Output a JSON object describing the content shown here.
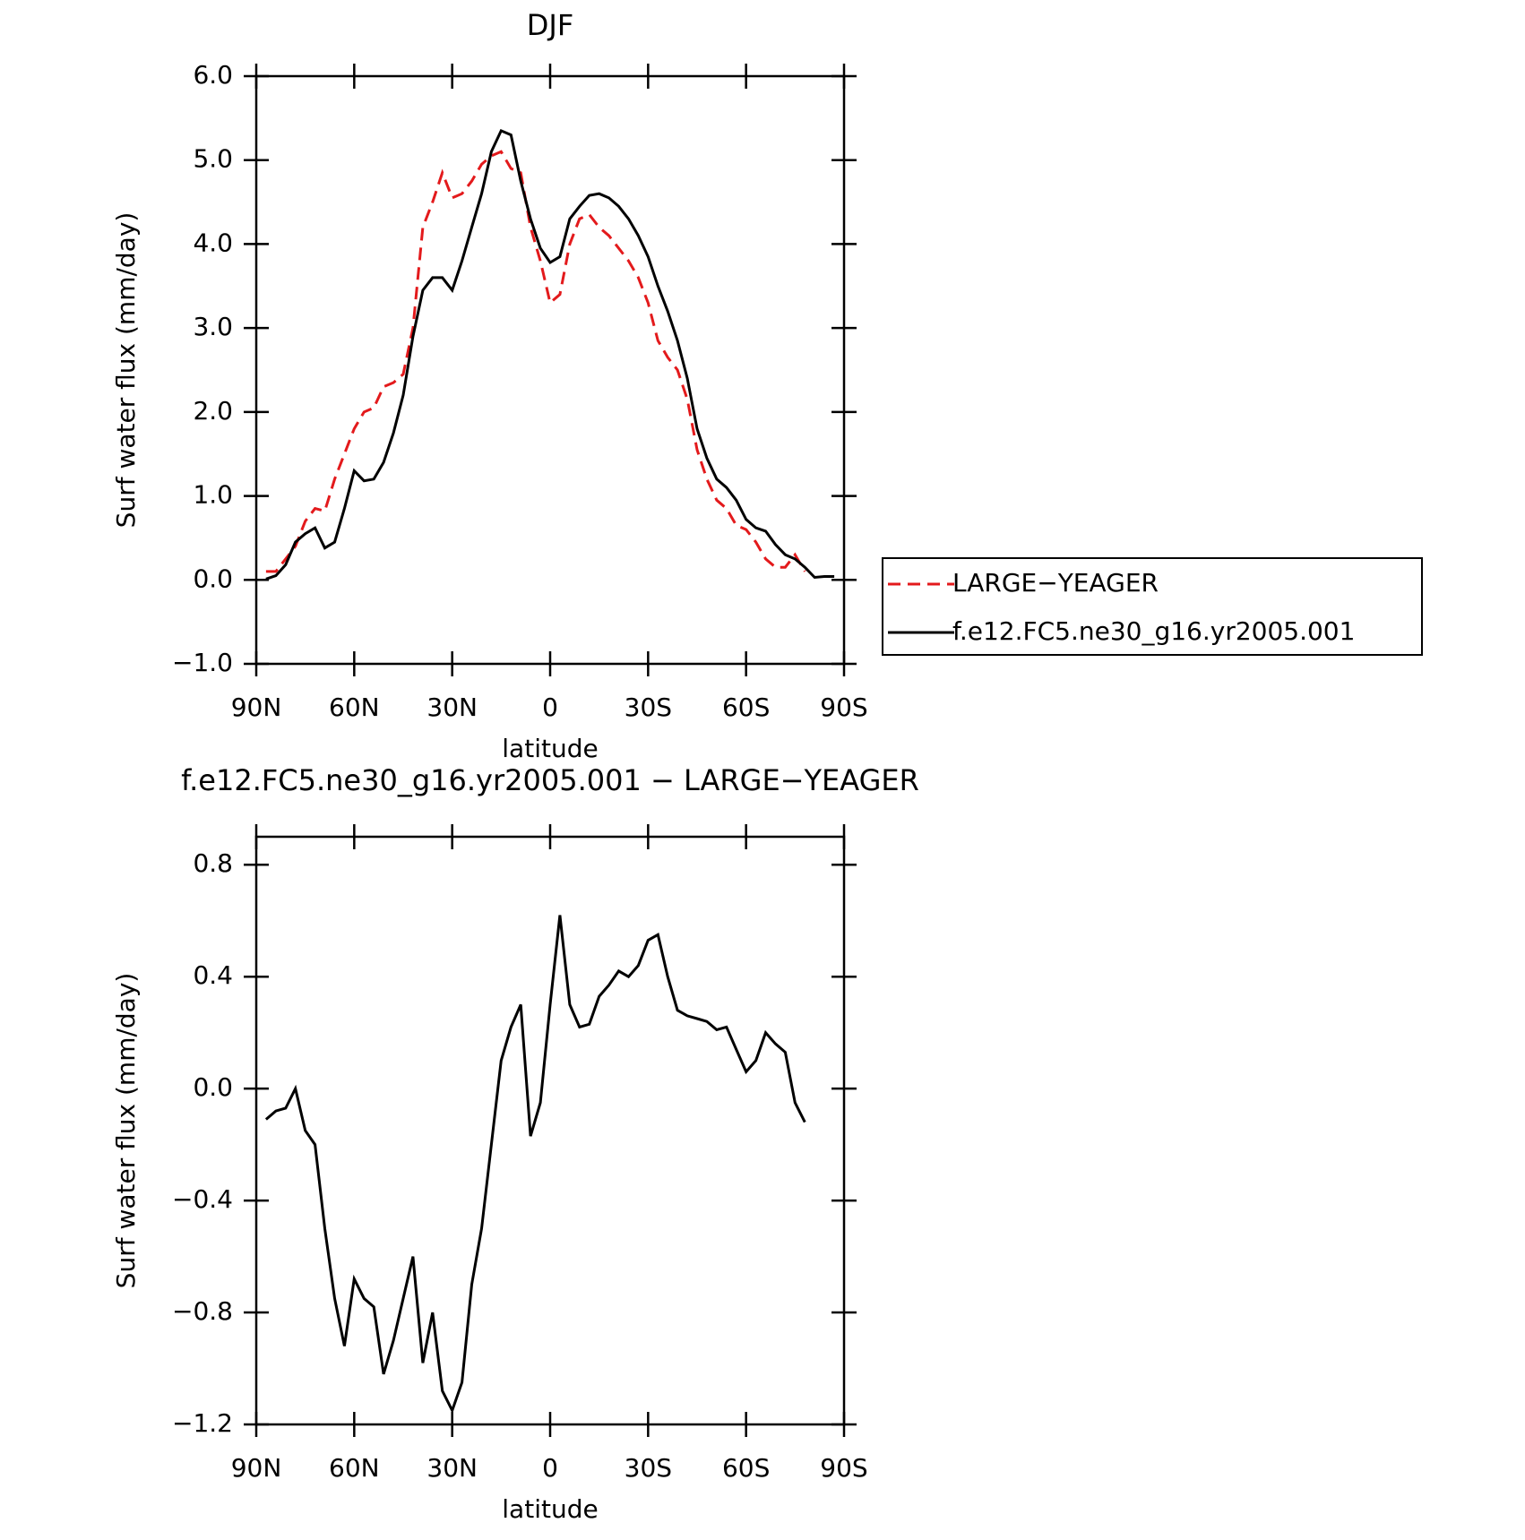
{
  "chart_data": [
    {
      "type": "line",
      "title": "DJF",
      "xlabel": "latitude",
      "ylabel": "Surf water flux (mm/day)",
      "x": [
        87,
        84,
        81,
        78,
        75,
        72,
        69,
        66,
        63,
        60,
        57,
        54,
        51,
        48,
        45,
        42,
        39,
        36,
        33,
        30,
        27,
        24,
        21,
        18,
        15,
        12,
        9,
        6,
        3,
        0,
        -3,
        -6,
        -9,
        -12,
        -15,
        -18,
        -21,
        -24,
        -27,
        -30,
        -33,
        -36,
        -39,
        -42,
        -45,
        -48,
        -51,
        -54,
        -57,
        -60,
        -63,
        -66,
        -69,
        -72,
        -75,
        -78,
        -81,
        -84,
        -87
      ],
      "series": [
        {
          "name": "LARGE−YEAGER",
          "color": "#e31a1c",
          "line_style": "dashed",
          "values": [
            0.1,
            0.1,
            0.25,
            0.4,
            0.7,
            0.85,
            0.82,
            1.2,
            1.5,
            1.8,
            2.0,
            2.05,
            2.3,
            2.35,
            2.45,
            3.0,
            4.2,
            4.5,
            4.85,
            4.55,
            4.6,
            4.75,
            4.95,
            5.05,
            5.1,
            4.9,
            4.85,
            4.2,
            3.8,
            3.3,
            3.4,
            4.0,
            4.3,
            4.35,
            4.2,
            4.1,
            3.95,
            3.8,
            3.6,
            3.3,
            2.85,
            2.65,
            2.5,
            2.15,
            1.55,
            1.2,
            0.95,
            0.85,
            0.65,
            0.6,
            0.45,
            0.25,
            0.15,
            0.15,
            0.3,
            0.1,
            null,
            null,
            null
          ]
        },
        {
          "name": "f.e12.FC5.ne30_g16.yr2005.001",
          "color": "#000000",
          "line_style": "solid",
          "values": [
            0.01,
            0.05,
            0.18,
            0.45,
            0.55,
            0.62,
            0.38,
            0.45,
            0.85,
            1.3,
            1.18,
            1.2,
            1.4,
            1.75,
            2.2,
            2.9,
            3.45,
            3.6,
            3.6,
            3.45,
            3.8,
            4.2,
            4.6,
            5.1,
            5.35,
            5.3,
            4.75,
            4.3,
            3.95,
            3.78,
            3.85,
            4.3,
            4.45,
            4.58,
            4.6,
            4.55,
            4.45,
            4.3,
            4.1,
            3.85,
            3.5,
            3.2,
            2.85,
            2.4,
            1.8,
            1.45,
            1.2,
            1.1,
            0.95,
            0.72,
            0.62,
            0.58,
            0.42,
            0.3,
            0.25,
            0.15,
            0.03,
            0.04,
            0.04
          ]
        }
      ],
      "xlim": [
        90,
        -90
      ],
      "xticks": [
        {
          "value": 90,
          "label": "90N"
        },
        {
          "value": 60,
          "label": "60N"
        },
        {
          "value": 30,
          "label": "30N"
        },
        0,
        {
          "value": -30,
          "label": "30S"
        },
        {
          "value": -60,
          "label": "60S"
        },
        {
          "value": -90,
          "label": "90S"
        }
      ],
      "ylim": [
        -1,
        6
      ],
      "yticks": [
        {
          "value": -1,
          "label": "−1.0"
        },
        {
          "value": 0,
          "label": "0.0"
        },
        {
          "value": 1,
          "label": "1.0"
        },
        {
          "value": 2,
          "label": "2.0"
        },
        {
          "value": 3,
          "label": "3.0"
        },
        {
          "value": 4,
          "label": "4.0"
        },
        {
          "value": 5,
          "label": "5.0"
        },
        {
          "value": 6,
          "label": "6.0"
        }
      ],
      "legend": "outside-right"
    },
    {
      "type": "line",
      "title": "f.e12.FC5.ne30_g16.yr2005.001 − LARGE−YEAGER",
      "xlabel": "latitude",
      "ylabel": "Surf water flux (mm/day)",
      "x": [
        87,
        84,
        81,
        78,
        75,
        72,
        69,
        66,
        63,
        60,
        57,
        54,
        51,
        48,
        45,
        42,
        39,
        36,
        33,
        30,
        27,
        24,
        21,
        18,
        15,
        12,
        9,
        6,
        3,
        0,
        -3,
        -6,
        -9,
        -12,
        -15,
        -18,
        -21,
        -24,
        -27,
        -30,
        -33,
        -36,
        -39,
        -42,
        -45,
        -48,
        -51,
        -54,
        -57,
        -60,
        -63,
        -66,
        -69,
        -72,
        -75,
        -78
      ],
      "series": [
        {
          "color": "#000000",
          "line_style": "solid",
          "values": [
            -0.11,
            -0.08,
            -0.07,
            0.0,
            -0.15,
            -0.2,
            -0.5,
            -0.75,
            -0.92,
            -0.68,
            -0.75,
            -0.78,
            -1.02,
            -0.9,
            -0.75,
            -0.6,
            -0.98,
            -0.8,
            -1.08,
            -1.15,
            -1.05,
            -0.7,
            -0.5,
            -0.2,
            0.1,
            0.22,
            0.3,
            -0.17,
            -0.05,
            0.3,
            0.62,
            0.3,
            0.22,
            0.23,
            0.33,
            0.37,
            0.42,
            0.4,
            0.44,
            0.53,
            0.55,
            0.4,
            0.28,
            0.26,
            0.25,
            0.24,
            0.21,
            0.22,
            0.14,
            0.06,
            0.1,
            0.2,
            0.16,
            0.13,
            -0.05,
            -0.12
          ]
        }
      ],
      "xlim": [
        90,
        -90
      ],
      "xticks": [
        {
          "value": 90,
          "label": "90N"
        },
        {
          "value": 60,
          "label": "60N"
        },
        {
          "value": 30,
          "label": "30N"
        },
        0,
        {
          "value": -30,
          "label": "30S"
        },
        {
          "value": -60,
          "label": "60S"
        },
        {
          "value": -90,
          "label": "90S"
        }
      ],
      "ylim": [
        -1.2,
        0.9
      ],
      "yticks": [
        {
          "value": -1.2,
          "label": "−1.2"
        },
        {
          "value": -0.8,
          "label": "−0.8"
        },
        {
          "value": -0.4,
          "label": "−0.4"
        },
        {
          "value": 0,
          "label": "0.0"
        },
        0.4,
        0.8
      ]
    }
  ]
}
